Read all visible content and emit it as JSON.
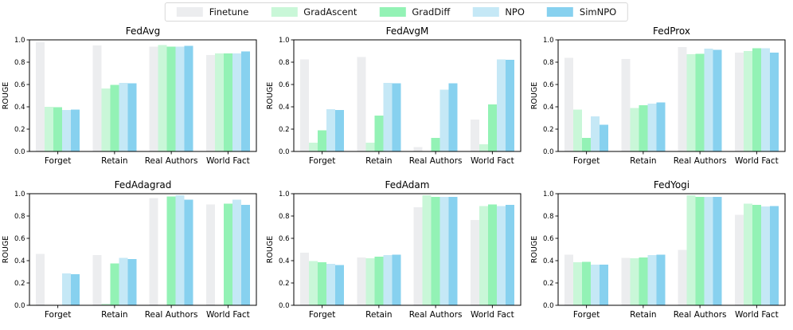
{
  "figure": {
    "ylabel": "ROUGE",
    "ylim": [
      0.0,
      1.0
    ],
    "yticks": [
      "0.0",
      "0.2",
      "0.4",
      "0.6",
      "0.8",
      "1.0"
    ],
    "categories": [
      "Forget",
      "Retain",
      "Real Authors",
      "World Fact"
    ],
    "grid_on": false,
    "legend_position": "top-center",
    "legend": {
      "items": [
        {
          "label": "Finetune",
          "color": "#ECEDEF"
        },
        {
          "label": "GradAscent",
          "color": "#C9F7D8"
        },
        {
          "label": "GradDiff",
          "color": "#93F2B5"
        },
        {
          "label": "NPO",
          "color": "#C5E8F6"
        },
        {
          "label": "SimNPO",
          "color": "#87D1EF"
        }
      ]
    }
  },
  "chart_data": [
    {
      "type": "bar",
      "title": "FedAvg",
      "xlabel": "",
      "ylabel": "ROUGE",
      "ylim": [
        0.0,
        1.0
      ],
      "categories": [
        "Forget",
        "Retain",
        "Real Authors",
        "World Fact"
      ],
      "series": [
        {
          "name": "Finetune",
          "values": [
            0.98,
            0.95,
            0.94,
            0.865
          ]
        },
        {
          "name": "GradAscent",
          "values": [
            0.4,
            0.565,
            0.955,
            0.88
          ]
        },
        {
          "name": "GradDiff",
          "values": [
            0.395,
            0.595,
            0.94,
            0.88
          ]
        },
        {
          "name": "NPO",
          "values": [
            0.37,
            0.615,
            0.94,
            0.88
          ]
        },
        {
          "name": "SimNPO",
          "values": [
            0.375,
            0.61,
            0.945,
            0.895
          ]
        }
      ]
    },
    {
      "type": "bar",
      "title": "FedAvgM",
      "xlabel": "",
      "ylabel": "ROUGE",
      "ylim": [
        0.0,
        1.0
      ],
      "categories": [
        "Forget",
        "Retain",
        "Real Authors",
        "World Fact"
      ],
      "series": [
        {
          "name": "Finetune",
          "values": [
            0.825,
            0.845,
            0.04,
            0.285
          ]
        },
        {
          "name": "GradAscent",
          "values": [
            0.08,
            0.08,
            0.0,
            0.065
          ]
        },
        {
          "name": "GradDiff",
          "values": [
            0.19,
            0.32,
            0.12,
            0.42
          ]
        },
        {
          "name": "NPO",
          "values": [
            0.38,
            0.615,
            0.555,
            0.825
          ]
        },
        {
          "name": "SimNPO",
          "values": [
            0.37,
            0.61,
            0.61,
            0.82
          ]
        }
      ]
    },
    {
      "type": "bar",
      "title": "FedProx",
      "xlabel": "",
      "ylabel": "ROUGE",
      "ylim": [
        0.0,
        1.0
      ],
      "categories": [
        "Forget",
        "Retain",
        "Real Authors",
        "World Fact"
      ],
      "series": [
        {
          "name": "Finetune",
          "values": [
            0.84,
            0.83,
            0.935,
            0.885
          ]
        },
        {
          "name": "GradAscent",
          "values": [
            0.375,
            0.39,
            0.87,
            0.9
          ]
        },
        {
          "name": "GradDiff",
          "values": [
            0.12,
            0.415,
            0.875,
            0.925
          ]
        },
        {
          "name": "NPO",
          "values": [
            0.315,
            0.43,
            0.92,
            0.925
          ]
        },
        {
          "name": "SimNPO",
          "values": [
            0.24,
            0.44,
            0.91,
            0.885
          ]
        }
      ]
    },
    {
      "type": "bar",
      "title": "FedAdagrad",
      "xlabel": "",
      "ylabel": "ROUGE",
      "ylim": [
        0.0,
        1.0
      ],
      "categories": [
        "Forget",
        "Retain",
        "Real Authors",
        "World Fact"
      ],
      "series": [
        {
          "name": "Finetune",
          "values": [
            0.46,
            0.45,
            0.96,
            0.905
          ]
        },
        {
          "name": "GradAscent",
          "values": [
            0.0,
            0.015,
            0.0,
            0.0
          ]
        },
        {
          "name": "GradDiff",
          "values": [
            0.0,
            0.375,
            0.975,
            0.91
          ]
        },
        {
          "name": "NPO",
          "values": [
            0.285,
            0.425,
            0.985,
            0.945
          ]
        },
        {
          "name": "SimNPO",
          "values": [
            0.28,
            0.415,
            0.945,
            0.9
          ]
        }
      ]
    },
    {
      "type": "bar",
      "title": "FedAdam",
      "xlabel": "",
      "ylabel": "ROUGE",
      "ylim": [
        0.0,
        1.0
      ],
      "categories": [
        "Forget",
        "Retain",
        "Real Authors",
        "World Fact"
      ],
      "series": [
        {
          "name": "Finetune",
          "values": [
            0.47,
            0.43,
            0.88,
            0.765
          ]
        },
        {
          "name": "GradAscent",
          "values": [
            0.395,
            0.42,
            0.985,
            0.89
          ]
        },
        {
          "name": "GradDiff",
          "values": [
            0.385,
            0.435,
            0.97,
            0.905
          ]
        },
        {
          "name": "NPO",
          "values": [
            0.37,
            0.45,
            0.97,
            0.89
          ]
        },
        {
          "name": "SimNPO",
          "values": [
            0.36,
            0.455,
            0.97,
            0.9
          ]
        }
      ]
    },
    {
      "type": "bar",
      "title": "FedYogi",
      "xlabel": "",
      "ylabel": "ROUGE",
      "ylim": [
        0.0,
        1.0
      ],
      "categories": [
        "Forget",
        "Retain",
        "Real Authors",
        "World Fact"
      ],
      "series": [
        {
          "name": "Finetune",
          "values": [
            0.455,
            0.425,
            0.495,
            0.81
          ]
        },
        {
          "name": "GradAscent",
          "values": [
            0.385,
            0.42,
            0.985,
            0.91
          ]
        },
        {
          "name": "GradDiff",
          "values": [
            0.39,
            0.43,
            0.97,
            0.9
          ]
        },
        {
          "name": "NPO",
          "values": [
            0.365,
            0.45,
            0.97,
            0.885
          ]
        },
        {
          "name": "SimNPO",
          "values": [
            0.365,
            0.455,
            0.97,
            0.89
          ]
        }
      ]
    }
  ]
}
